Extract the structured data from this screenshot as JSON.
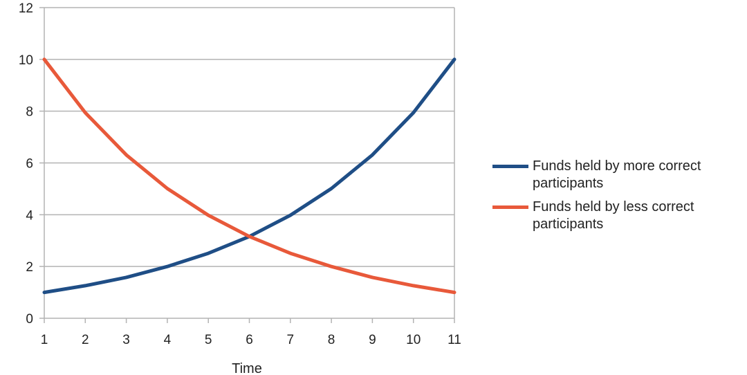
{
  "chart_data": {
    "type": "line",
    "title": "",
    "xlabel": "Time",
    "ylabel": "",
    "categories": [
      "1",
      "2",
      "3",
      "4",
      "5",
      "6",
      "7",
      "8",
      "9",
      "10",
      "11"
    ],
    "ylim": [
      0,
      12
    ],
    "yticks": [
      "0",
      "2",
      "4",
      "6",
      "8",
      "10",
      "12"
    ],
    "grid": true,
    "legend_position": "right",
    "series": [
      {
        "name": "Funds held by more correct participants",
        "color": "#1f4e86",
        "values": [
          1.0,
          1.26,
          1.58,
          2.0,
          2.51,
          3.16,
          3.98,
          5.01,
          6.31,
          7.94,
          10.0
        ]
      },
      {
        "name": "Funds held by less correct participants",
        "color": "#e8593a",
        "values": [
          10.0,
          7.94,
          6.31,
          5.01,
          3.98,
          3.16,
          2.51,
          2.0,
          1.58,
          1.26,
          1.0
        ]
      }
    ]
  }
}
